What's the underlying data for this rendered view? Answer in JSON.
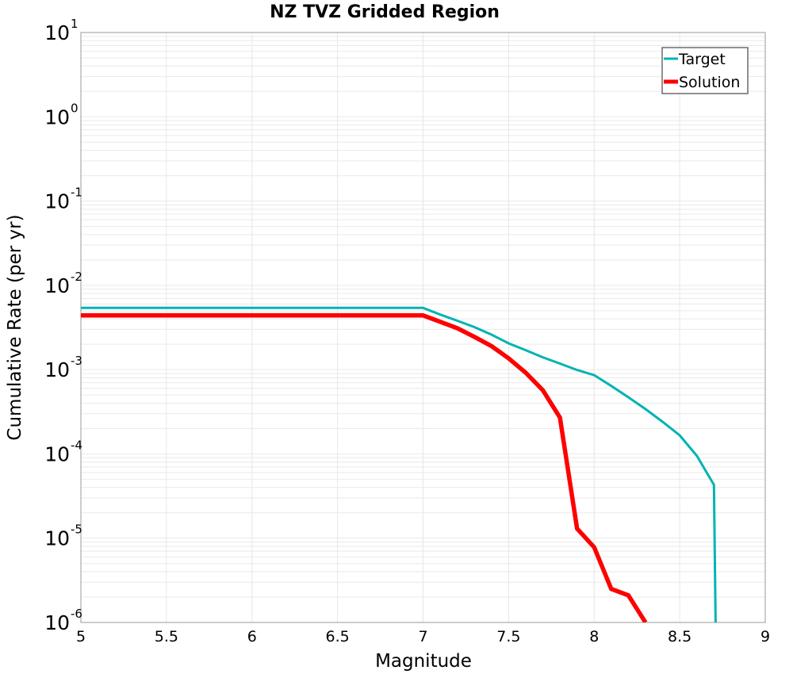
{
  "chart_data": {
    "type": "line",
    "title": "NZ TVZ Gridded Region",
    "xlabel": "Magnitude",
    "ylabel": "Cumulative Rate (per yr)",
    "xlim": [
      5,
      9
    ],
    "ylim": [
      1e-06,
      10
    ],
    "yscale": "log",
    "grid": true,
    "legend_position": "top-right",
    "x_ticks": [
      "5",
      "5.5",
      "6",
      "6.5",
      "7",
      "7.5",
      "8",
      "8.5",
      "9"
    ],
    "x_tick_values": [
      5,
      5.5,
      6,
      6.5,
      7,
      7.5,
      8,
      8.5,
      9
    ],
    "y_ticks": [
      {
        "base": "10",
        "exp": "1",
        "value": 10
      },
      {
        "base": "10",
        "exp": "0",
        "value": 1
      },
      {
        "base": "10",
        "exp": "-1",
        "value": 0.1
      },
      {
        "base": "10",
        "exp": "-2",
        "value": 0.01
      },
      {
        "base": "10",
        "exp": "-3",
        "value": 0.001
      },
      {
        "base": "10",
        "exp": "-4",
        "value": 0.0001
      },
      {
        "base": "10",
        "exp": "-5",
        "value": 1e-05
      },
      {
        "base": "10",
        "exp": "-6",
        "value": 1e-06
      }
    ],
    "series": [
      {
        "name": "Target",
        "color": "#00b3b3",
        "x": [
          5.0,
          5.5,
          6.0,
          6.5,
          7.0,
          7.1,
          7.2,
          7.3,
          7.4,
          7.5,
          7.6,
          7.7,
          7.8,
          7.9,
          8.0,
          8.1,
          8.2,
          8.3,
          8.4,
          8.5,
          8.6,
          8.7,
          8.71
        ],
        "y": [
          0.0054,
          0.0054,
          0.0054,
          0.0054,
          0.0054,
          0.0045,
          0.0038,
          0.0032,
          0.0026,
          0.00205,
          0.0017,
          0.0014,
          0.00118,
          0.00099,
          0.00086,
          0.00064,
          0.00047,
          0.00034,
          0.00024,
          0.000166,
          9.5e-05,
          4.3e-05,
          1e-06
        ]
      },
      {
        "name": "Solution",
        "color": "#ff0000",
        "x": [
          5.0,
          5.5,
          6.0,
          6.5,
          7.0,
          7.1,
          7.2,
          7.3,
          7.4,
          7.5,
          7.6,
          7.7,
          7.8,
          7.9,
          8.0,
          8.1,
          8.2,
          8.3
        ],
        "y": [
          0.0044,
          0.0044,
          0.0044,
          0.0044,
          0.0044,
          0.0037,
          0.0031,
          0.00245,
          0.0019,
          0.00136,
          0.00092,
          0.00057,
          0.00027,
          1.3e-05,
          7.8e-06,
          2.5e-06,
          2.1e-06,
          1e-06
        ]
      }
    ]
  }
}
